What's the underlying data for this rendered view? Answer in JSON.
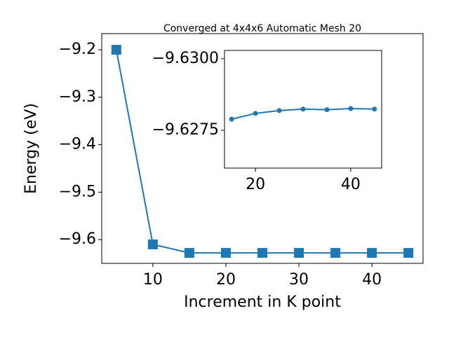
{
  "chart_data": [
    {
      "type": "line",
      "title": "Converged at 4x4x6 Automatic Mesh 20",
      "x_label": "Increment in K point",
      "y_label": "Energy (eV)",
      "x": [
        5,
        10,
        15,
        20,
        25,
        30,
        35,
        40,
        45
      ],
      "series": [
        {
          "name": "Energy",
          "color": "#1f77b4",
          "marker": "square",
          "values": [
            -9.2,
            -9.61,
            -9.628,
            -9.628,
            -9.628,
            -9.628,
            -9.628,
            -9.628,
            -9.628
          ]
        }
      ],
      "xlim": [
        3,
        47
      ],
      "ylim": [
        -9.65,
        -9.166
      ],
      "xticks": [
        10,
        20,
        30,
        40
      ],
      "yticks": [
        {
          "value": -9.2,
          "label": "−9.2"
        },
        {
          "value": -9.3,
          "label": "−9.3"
        },
        {
          "value": -9.4,
          "label": "−9.4"
        },
        {
          "value": -9.5,
          "label": "−9.5"
        },
        {
          "value": -9.6,
          "label": "−9.6"
        }
      ]
    },
    {
      "type": "line",
      "x": [
        15,
        20,
        25,
        30,
        35,
        40,
        45
      ],
      "series": [
        {
          "name": "Energy",
          "color": "#1f77b4",
          "marker": "circle",
          "values": [
            -9.62789,
            -9.62809,
            -9.62819,
            -9.62824,
            -9.62822,
            -9.62826,
            -9.62824
          ]
        }
      ],
      "xlim": [
        13.5,
        46.5
      ],
      "ylim": [
        -9.62618,
        -9.63029
      ],
      "xticks": [
        20,
        40
      ],
      "yticks": [
        {
          "value": -9.63,
          "label": "−9.6300"
        },
        {
          "value": -9.6275,
          "label": "−9.6275"
        }
      ]
    }
  ]
}
